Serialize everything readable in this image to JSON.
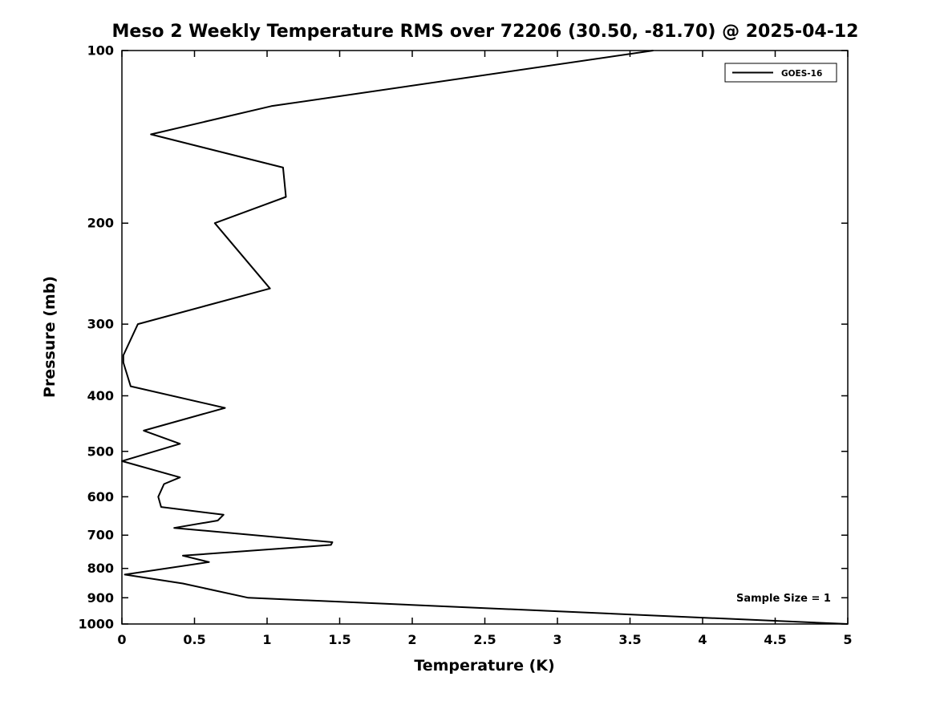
{
  "figure": {
    "background_color": "#ffffff",
    "foreground_color": "#000000"
  },
  "chart_data": {
    "type": "line",
    "title": "Meso 2 Weekly Temperature RMS over 72206 (30.50, -81.70) @ 2025-04-12",
    "xlabel": "Temperature (K)",
    "ylabel": "Pressure (mb)",
    "xlim": [
      0,
      5
    ],
    "ylim": [
      100,
      1000
    ],
    "y_scale": "log",
    "y_axis_inverted": true,
    "grid": false,
    "x_ticks": [
      0,
      0.5,
      1,
      1.5,
      2,
      2.5,
      3,
      3.5,
      4,
      4.5,
      5
    ],
    "x_tick_labels": [
      "0",
      "0.5",
      "1",
      "1.5",
      "2",
      "2.5",
      "3",
      "3.5",
      "4",
      "4.5",
      "5"
    ],
    "y_ticks": [
      100,
      200,
      300,
      400,
      500,
      600,
      700,
      800,
      900,
      1000
    ],
    "y_tick_labels": [
      "100",
      "200",
      "300",
      "400",
      "500",
      "600",
      "700",
      "800",
      "900",
      "1000"
    ],
    "legend": {
      "position": "top-right",
      "entries": [
        {
          "label": "GOES-16",
          "color": "#000000",
          "line_style": "solid"
        }
      ]
    },
    "annotation": {
      "text": "Sample Size = 1",
      "position": "bottom-right"
    },
    "series": [
      {
        "name": "GOES-16",
        "color": "#000000",
        "points": [
          {
            "p": 100,
            "rms": 3.66
          },
          {
            "p": 125,
            "rms": 1.03
          },
          {
            "p": 140,
            "rms": 0.2
          },
          {
            "p": 160,
            "rms": 1.11
          },
          {
            "p": 180,
            "rms": 1.13
          },
          {
            "p": 200,
            "rms": 0.64
          },
          {
            "p": 260,
            "rms": 1.02
          },
          {
            "p": 300,
            "rms": 0.11
          },
          {
            "p": 340,
            "rms": 0.01
          },
          {
            "p": 350,
            "rms": 0.01
          },
          {
            "p": 385,
            "rms": 0.06
          },
          {
            "p": 420,
            "rms": 0.71
          },
          {
            "p": 460,
            "rms": 0.15
          },
          {
            "p": 485,
            "rms": 0.4
          },
          {
            "p": 520,
            "rms": 0.0
          },
          {
            "p": 555,
            "rms": 0.4
          },
          {
            "p": 570,
            "rms": 0.29
          },
          {
            "p": 600,
            "rms": 0.25
          },
          {
            "p": 625,
            "rms": 0.27
          },
          {
            "p": 645,
            "rms": 0.7
          },
          {
            "p": 660,
            "rms": 0.66
          },
          {
            "p": 680,
            "rms": 0.36
          },
          {
            "p": 720,
            "rms": 1.45
          },
          {
            "p": 728,
            "rms": 1.44
          },
          {
            "p": 760,
            "rms": 0.42
          },
          {
            "p": 780,
            "rms": 0.6
          },
          {
            "p": 820,
            "rms": 0.02
          },
          {
            "p": 850,
            "rms": 0.42
          },
          {
            "p": 900,
            "rms": 0.87
          },
          {
            "p": 1000,
            "rms": 5.0
          }
        ]
      }
    ]
  }
}
